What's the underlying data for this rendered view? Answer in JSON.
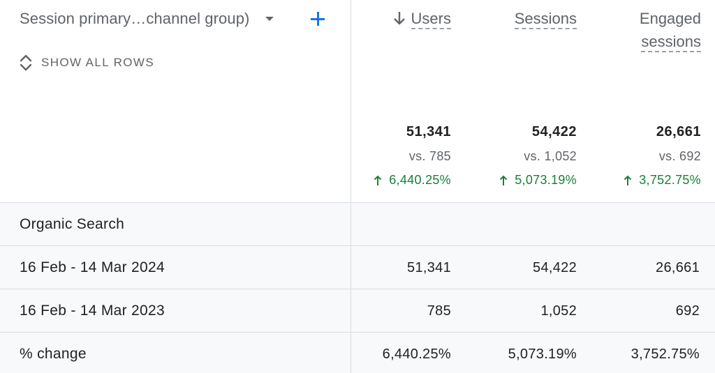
{
  "dimension": {
    "label": "Session primary…channel group)",
    "add_icon": "plus-icon",
    "caret_icon": "caret-down-icon"
  },
  "show_all_rows": {
    "label": "SHOW ALL ROWS",
    "icon": "unfold-more-icon"
  },
  "columns": [
    {
      "label": "Users",
      "sorted": true,
      "sort_icon": "arrow-down-icon",
      "total": "51,341",
      "vs": "vs. 785",
      "change": "6,440.25%"
    },
    {
      "label": "Sessions",
      "sorted": false,
      "total": "54,422",
      "vs": "vs. 1,052",
      "change": "5,073.19%"
    },
    {
      "label_line1": "Engaged",
      "label_line2": "sessions",
      "sorted": false,
      "total": "26,661",
      "vs": "vs. 692",
      "change": "3,752.75%"
    }
  ],
  "rows": [
    {
      "label": "Organic Search",
      "values": [
        "",
        "",
        ""
      ]
    },
    {
      "label": "16 Feb - 14 Mar 2024",
      "values": [
        "51,341",
        "54,422",
        "26,661"
      ]
    },
    {
      "label": "16 Feb - 14 Mar 2023",
      "values": [
        "785",
        "1,052",
        "692"
      ]
    },
    {
      "label": "% change",
      "values": [
        "6,440.25%",
        "5,073.19%",
        "3,752.75%"
      ]
    }
  ],
  "colors": {
    "accent": "#1a73e8",
    "positive": "#188038",
    "muted": "#5f6368",
    "row_bg": "#f8f9fa",
    "divider": "#dadce0"
  }
}
